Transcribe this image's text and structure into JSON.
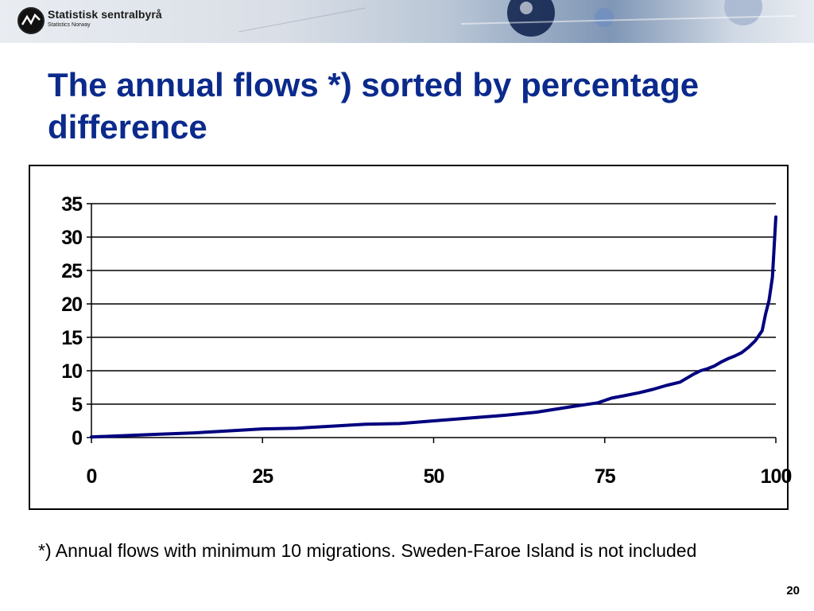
{
  "header": {
    "org_name": "Statistisk sentralbyrå",
    "org_sub": "Statistics Norway"
  },
  "slide": {
    "title": "The annual flows *) sorted by percentage difference",
    "footnote": "*) Annual flows with minimum 10 migrations.  Sweden-Faroe Island is not included",
    "page_number": "20"
  },
  "colors": {
    "title": "#0b2a8c",
    "series": "#00007f",
    "gridline": "#000000"
  },
  "chart_data": {
    "type": "line",
    "title": "",
    "xlabel": "",
    "ylabel": "",
    "xlim": [
      0,
      100
    ],
    "ylim": [
      0,
      35
    ],
    "x_ticks": [
      0,
      25,
      50,
      75,
      100
    ],
    "y_ticks": [
      0,
      5,
      10,
      15,
      20,
      25,
      30,
      35
    ],
    "grid": true,
    "legend": "none",
    "series": [
      {
        "color": "#00007f",
        "x": [
          0,
          5,
          10,
          15,
          20,
          25,
          30,
          35,
          40,
          45,
          50,
          55,
          60,
          65,
          70,
          72,
          74,
          76,
          78,
          80,
          82,
          84,
          86,
          88,
          89,
          90,
          91,
          92,
          93,
          94,
          95,
          96,
          97,
          98,
          98.5,
          99,
          99.5,
          100
        ],
        "y": [
          0.1,
          0.3,
          0.5,
          0.7,
          1.0,
          1.3,
          1.4,
          1.7,
          2.0,
          2.1,
          2.5,
          2.9,
          3.3,
          3.8,
          4.6,
          4.9,
          5.2,
          5.9,
          6.3,
          6.7,
          7.2,
          7.8,
          8.3,
          9.5,
          10.0,
          10.3,
          10.7,
          11.3,
          11.8,
          12.2,
          12.7,
          13.5,
          14.5,
          16.0,
          18.5,
          20.5,
          24.0,
          33.0
        ]
      }
    ]
  }
}
